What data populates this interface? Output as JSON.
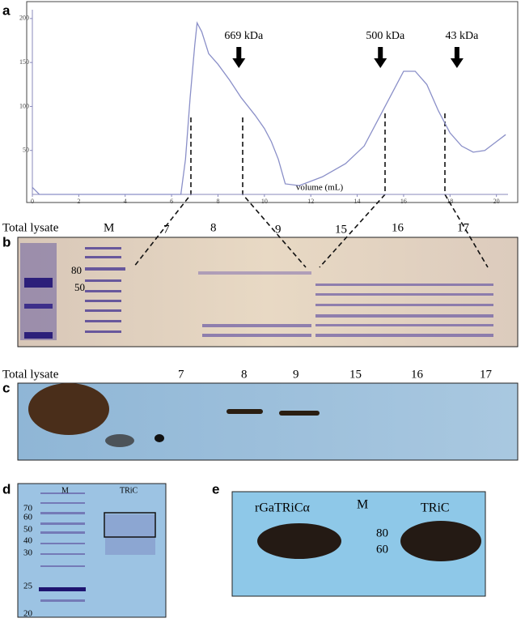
{
  "panel_labels": [
    "a",
    "b",
    "c",
    "d",
    "e"
  ],
  "chart_data": {
    "type": "line",
    "xlabel": "volume (mL)",
    "x": [
      0,
      0.3,
      6.4,
      6.6,
      6.8,
      7.0,
      7.1,
      7.3,
      7.6,
      8.0,
      8.5,
      9.0,
      9.3,
      9.6,
      10.0,
      10.3,
      10.6,
      10.9,
      11.5,
      12.5,
      13.5,
      14.3,
      15.0,
      15.5,
      16.0,
      16.5,
      17.0,
      17.5,
      18.0,
      18.5,
      19.0,
      19.5,
      20.0,
      20.4
    ],
    "values": [
      8,
      0,
      0,
      40,
      110,
      170,
      195,
      185,
      160,
      148,
      130,
      110,
      100,
      90,
      75,
      60,
      40,
      12,
      10,
      20,
      35,
      55,
      90,
      115,
      140,
      140,
      125,
      95,
      70,
      55,
      48,
      50,
      60,
      68
    ],
    "color": "#8a8fc8",
    "xlim": [
      0,
      20.5
    ],
    "ylim": [
      0,
      210
    ],
    "xticks": [
      0,
      2,
      4,
      6,
      8,
      10,
      12,
      14,
      16,
      18,
      20
    ],
    "yticks": [
      50,
      100,
      150,
      200
    ],
    "annotations": [
      {
        "text": "669 kDa",
        "x": 8.9
      },
      {
        "text": "500 kDa",
        "x": 15.0
      },
      {
        "text": "43 kDa",
        "x": 18.3
      }
    ]
  },
  "gel_b": {
    "lanes": [
      "Total lysate",
      "M",
      "7",
      "8",
      "9",
      "15",
      "16",
      "17"
    ],
    "markers": [
      "80",
      "50"
    ]
  },
  "blot_c": {
    "lanes": [
      "Total lysate",
      "7",
      "8",
      "9",
      "15",
      "16",
      "17"
    ]
  },
  "gel_d": {
    "lanes": [
      "M",
      "TRiC"
    ],
    "markers": [
      "70",
      "60",
      "50",
      "40",
      "30",
      "25",
      "20"
    ]
  },
  "blot_e": {
    "lanes": [
      "rGaTRiCα",
      "M",
      "TRiC"
    ],
    "markers": [
      "80",
      "60"
    ]
  }
}
